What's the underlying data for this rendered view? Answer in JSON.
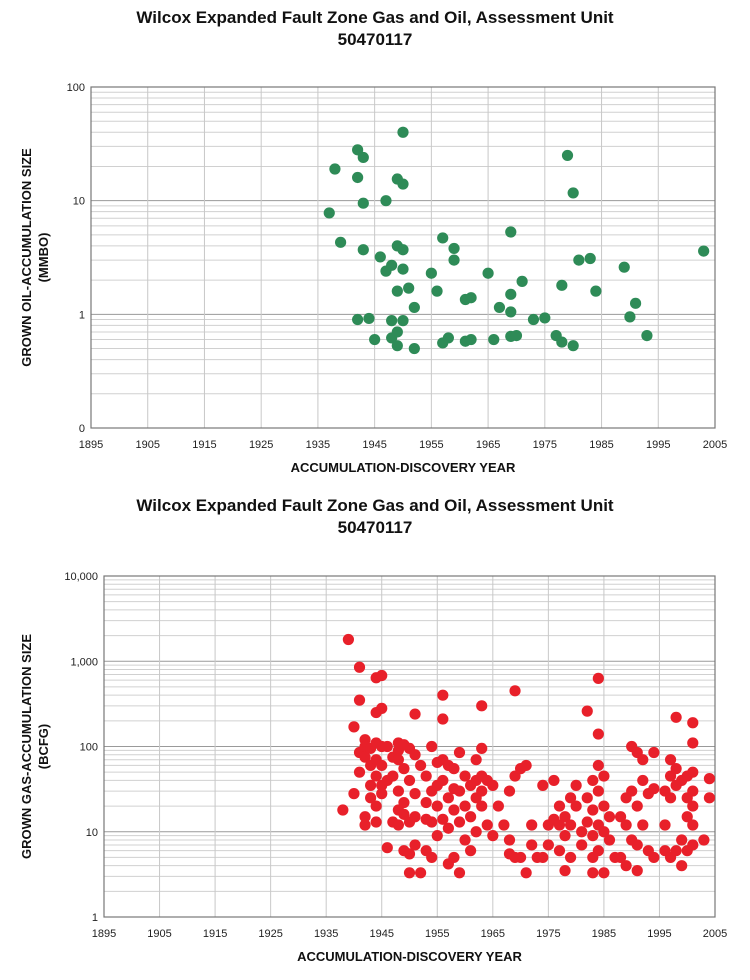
{
  "chart_data": [
    {
      "type": "scatter",
      "title_line1": "Wilcox Expanded Fault Zone Gas and Oil, Assessment Unit",
      "title_line2": "50470117",
      "xlabel": "ACCUMULATION-DISCOVERY YEAR",
      "ylabel_line1": "GROWN OIL-ACCUMULATION SIZE",
      "ylabel_line2": "(MMBO)",
      "xlim": [
        1895,
        2005
      ],
      "xticks": [
        "1895",
        "1905",
        "1915",
        "1925",
        "1935",
        "1945",
        "1955",
        "1965",
        "1975",
        "1985",
        "1995",
        "2005"
      ],
      "ylim": [
        0.1,
        100
      ],
      "yscale": "log",
      "yticks": [
        {
          "v": 0.1,
          "label": "0"
        },
        {
          "v": 1,
          "label": "1"
        },
        {
          "v": 10,
          "label": "10"
        },
        {
          "v": 100,
          "label": "100"
        }
      ],
      "grid": true,
      "marker_color": "#2e8b57",
      "points": [
        [
          1937,
          7.8
        ],
        [
          1938,
          19
        ],
        [
          1939,
          4.3
        ],
        [
          1942,
          28
        ],
        [
          1942,
          16
        ],
        [
          1942,
          0.9
        ],
        [
          1943,
          24
        ],
        [
          1943,
          9.5
        ],
        [
          1943,
          3.7
        ],
        [
          1944,
          0.92
        ],
        [
          1945,
          0.6
        ],
        [
          1946,
          3.2
        ],
        [
          1947,
          10
        ],
        [
          1947,
          2.4
        ],
        [
          1948,
          2.7
        ],
        [
          1948,
          0.88
        ],
        [
          1948,
          0.62
        ],
        [
          1949,
          15.5
        ],
        [
          1949,
          4
        ],
        [
          1949,
          1.6
        ],
        [
          1949,
          0.7
        ],
        [
          1949,
          0.53
        ],
        [
          1950,
          40
        ],
        [
          1950,
          14
        ],
        [
          1950,
          3.7
        ],
        [
          1950,
          2.5
        ],
        [
          1950,
          0.88
        ],
        [
          1951,
          1.7
        ],
        [
          1952,
          1.15
        ],
        [
          1952,
          0.5
        ],
        [
          1955,
          2.3
        ],
        [
          1956,
          1.6
        ],
        [
          1957,
          4.7
        ],
        [
          1957,
          0.56
        ],
        [
          1958,
          0.62
        ],
        [
          1959,
          3.8
        ],
        [
          1959,
          3
        ],
        [
          1961,
          1.35
        ],
        [
          1961,
          0.58
        ],
        [
          1962,
          1.4
        ],
        [
          1962,
          0.6
        ],
        [
          1965,
          2.3
        ],
        [
          1966,
          0.6
        ],
        [
          1967,
          1.15
        ],
        [
          1969,
          5.3
        ],
        [
          1969,
          1.5
        ],
        [
          1969,
          1.05
        ],
        [
          1969,
          0.64
        ],
        [
          1970,
          0.65
        ],
        [
          1971,
          1.95
        ],
        [
          1973,
          0.9
        ],
        [
          1975,
          0.93
        ],
        [
          1977,
          0.65
        ],
        [
          1978,
          1.8
        ],
        [
          1978,
          0.57
        ],
        [
          1979,
          25
        ],
        [
          1980,
          11.7
        ],
        [
          1980,
          0.53
        ],
        [
          1981,
          3
        ],
        [
          1983,
          3.1
        ],
        [
          1984,
          1.6
        ],
        [
          1989,
          2.6
        ],
        [
          1990,
          0.95
        ],
        [
          1991,
          1.25
        ],
        [
          1993,
          0.65
        ],
        [
          2003,
          3.6
        ]
      ]
    },
    {
      "type": "scatter",
      "title_line1": "Wilcox Expanded Fault Zone Gas and Oil, Assessment Unit",
      "title_line2": "50470117",
      "xlabel": "ACCUMULATION-DISCOVERY YEAR",
      "ylabel_line1": "GROWN GAS-ACCUMULATION SIZE",
      "ylabel_line2": "(BCFG)",
      "xlim": [
        1895,
        2005
      ],
      "xticks": [
        "1895",
        "1905",
        "1915",
        "1925",
        "1935",
        "1945",
        "1955",
        "1965",
        "1975",
        "1985",
        "1995",
        "2005"
      ],
      "ylim": [
        1,
        10000
      ],
      "yscale": "log",
      "yticks": [
        {
          "v": 1,
          "label": "1"
        },
        {
          "v": 10,
          "label": "10"
        },
        {
          "v": 100,
          "label": "100"
        },
        {
          "v": 1000,
          "label": "1,000"
        },
        {
          "v": 10000,
          "label": "10,000"
        }
      ],
      "grid": true,
      "marker_color": "#e8202a",
      "points": [
        [
          1938,
          18
        ],
        [
          1939,
          1800
        ],
        [
          1940,
          170
        ],
        [
          1940,
          28
        ],
        [
          1941,
          850
        ],
        [
          1941,
          350
        ],
        [
          1941,
          85
        ],
        [
          1941,
          50
        ],
        [
          1942,
          120
        ],
        [
          1942,
          100
        ],
        [
          1942,
          75
        ],
        [
          1942,
          15
        ],
        [
          1942,
          12
        ],
        [
          1943,
          95
        ],
        [
          1943,
          60
        ],
        [
          1943,
          35
        ],
        [
          1943,
          25
        ],
        [
          1944,
          640
        ],
        [
          1944,
          250
        ],
        [
          1944,
          110
        ],
        [
          1944,
          70
        ],
        [
          1944,
          45
        ],
        [
          1944,
          20
        ],
        [
          1944,
          13
        ],
        [
          1945,
          680
        ],
        [
          1945,
          280
        ],
        [
          1945,
          100
        ],
        [
          1945,
          60
        ],
        [
          1945,
          35
        ],
        [
          1945,
          28
        ],
        [
          1946,
          100
        ],
        [
          1946,
          40
        ],
        [
          1946,
          6.5
        ],
        [
          1947,
          75
        ],
        [
          1947,
          45
        ],
        [
          1947,
          13
        ],
        [
          1948,
          110
        ],
        [
          1948,
          90
        ],
        [
          1948,
          70
        ],
        [
          1948,
          30
        ],
        [
          1948,
          18
        ],
        [
          1948,
          12
        ],
        [
          1949,
          105
        ],
        [
          1949,
          55
        ],
        [
          1949,
          22
        ],
        [
          1949,
          16
        ],
        [
          1949,
          6
        ],
        [
          1950,
          95
        ],
        [
          1950,
          40
        ],
        [
          1950,
          13
        ],
        [
          1950,
          5.5
        ],
        [
          1950,
          3.3
        ],
        [
          1951,
          240
        ],
        [
          1951,
          80
        ],
        [
          1951,
          28
        ],
        [
          1951,
          15
        ],
        [
          1951,
          7
        ],
        [
          1952,
          60
        ],
        [
          1952,
          3.3
        ],
        [
          1953,
          45
        ],
        [
          1953,
          22
        ],
        [
          1953,
          14
        ],
        [
          1953,
          6
        ],
        [
          1954,
          100
        ],
        [
          1954,
          30
        ],
        [
          1954,
          13
        ],
        [
          1954,
          5
        ],
        [
          1955,
          65
        ],
        [
          1955,
          35
        ],
        [
          1955,
          20
        ],
        [
          1955,
          9
        ],
        [
          1956,
          400
        ],
        [
          1956,
          210
        ],
        [
          1956,
          70
        ],
        [
          1956,
          40
        ],
        [
          1956,
          14
        ],
        [
          1957,
          60
        ],
        [
          1957,
          25
        ],
        [
          1957,
          11
        ],
        [
          1957,
          4.2
        ],
        [
          1958,
          55
        ],
        [
          1958,
          32
        ],
        [
          1958,
          18
        ],
        [
          1958,
          5
        ],
        [
          1959,
          85
        ],
        [
          1959,
          30
        ],
        [
          1959,
          13
        ],
        [
          1959,
          3.3
        ],
        [
          1960,
          45
        ],
        [
          1960,
          20
        ],
        [
          1960,
          8
        ],
        [
          1961,
          35
        ],
        [
          1961,
          15
        ],
        [
          1961,
          6
        ],
        [
          1962,
          70
        ],
        [
          1962,
          40
        ],
        [
          1962,
          25
        ],
        [
          1962,
          10
        ],
        [
          1963,
          300
        ],
        [
          1963,
          95
        ],
        [
          1963,
          45
        ],
        [
          1963,
          30
        ],
        [
          1963,
          20
        ],
        [
          1964,
          40
        ],
        [
          1964,
          12
        ],
        [
          1965,
          35
        ],
        [
          1965,
          9
        ],
        [
          1966,
          20
        ],
        [
          1967,
          12
        ],
        [
          1968,
          30
        ],
        [
          1968,
          8
        ],
        [
          1968,
          5.5
        ],
        [
          1969,
          450
        ],
        [
          1969,
          45
        ],
        [
          1969,
          5
        ],
        [
          1970,
          55
        ],
        [
          1970,
          5
        ],
        [
          1971,
          60
        ],
        [
          1971,
          3.3
        ],
        [
          1972,
          12
        ],
        [
          1972,
          7
        ],
        [
          1973,
          5
        ],
        [
          1974,
          35
        ],
        [
          1974,
          5
        ],
        [
          1975,
          12
        ],
        [
          1975,
          7
        ],
        [
          1976,
          40
        ],
        [
          1976,
          14
        ],
        [
          1977,
          20
        ],
        [
          1977,
          12
        ],
        [
          1977,
          6
        ],
        [
          1978,
          15
        ],
        [
          1978,
          9
        ],
        [
          1978,
          3.5
        ],
        [
          1979,
          25
        ],
        [
          1979,
          12
        ],
        [
          1979,
          5
        ],
        [
          1980,
          35
        ],
        [
          1980,
          20
        ],
        [
          1981,
          10
        ],
        [
          1981,
          7
        ],
        [
          1982,
          260
        ],
        [
          1982,
          25
        ],
        [
          1982,
          13
        ],
        [
          1983,
          40
        ],
        [
          1983,
          18
        ],
        [
          1983,
          9
        ],
        [
          1983,
          5
        ],
        [
          1983,
          3.3
        ],
        [
          1984,
          630
        ],
        [
          1984,
          140
        ],
        [
          1984,
          60
        ],
        [
          1984,
          30
        ],
        [
          1984,
          12
        ],
        [
          1984,
          6
        ],
        [
          1985,
          45
        ],
        [
          1985,
          20
        ],
        [
          1985,
          10
        ],
        [
          1985,
          3.3
        ],
        [
          1986,
          15
        ],
        [
          1986,
          8
        ],
        [
          1987,
          5
        ],
        [
          1988,
          15
        ],
        [
          1988,
          5
        ],
        [
          1989,
          25
        ],
        [
          1989,
          12
        ],
        [
          1989,
          4
        ],
        [
          1990,
          100
        ],
        [
          1990,
          30
        ],
        [
          1990,
          8
        ],
        [
          1991,
          85
        ],
        [
          1991,
          20
        ],
        [
          1991,
          7
        ],
        [
          1991,
          3.5
        ],
        [
          1992,
          70
        ],
        [
          1992,
          40
        ],
        [
          1992,
          12
        ],
        [
          1993,
          28
        ],
        [
          1993,
          6
        ],
        [
          1994,
          85
        ],
        [
          1994,
          32
        ],
        [
          1994,
          5
        ],
        [
          1996,
          30
        ],
        [
          1996,
          12
        ],
        [
          1996,
          6
        ],
        [
          1997,
          70
        ],
        [
          1997,
          45
        ],
        [
          1997,
          25
        ],
        [
          1997,
          5
        ],
        [
          1998,
          220
        ],
        [
          1998,
          55
        ],
        [
          1998,
          35
        ],
        [
          1998,
          6
        ],
        [
          1999,
          40
        ],
        [
          1999,
          8
        ],
        [
          1999,
          4
        ],
        [
          2000,
          45
        ],
        [
          2000,
          25
        ],
        [
          2000,
          15
        ],
        [
          2000,
          6
        ],
        [
          2001,
          190
        ],
        [
          2001,
          110
        ],
        [
          2001,
          50
        ],
        [
          2001,
          30
        ],
        [
          2001,
          20
        ],
        [
          2001,
          12
        ],
        [
          2001,
          7
        ],
        [
          2003,
          8
        ],
        [
          2004,
          42
        ],
        [
          2004,
          25
        ]
      ]
    }
  ]
}
